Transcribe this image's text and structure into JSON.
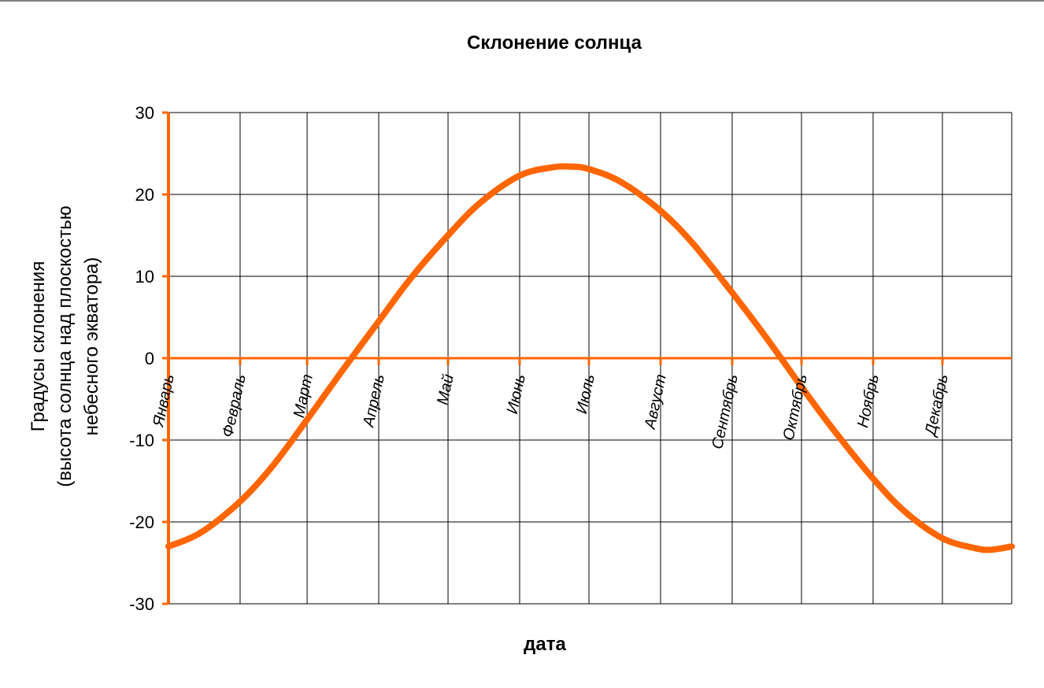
{
  "chart_data": {
    "type": "line",
    "title": "Склонение солнца",
    "xlabel": "дата",
    "ylabel_lines": [
      "Градусы склонения",
      "(высота солнца над плоскостью",
      "небесного экватора)"
    ],
    "x_unit": "day of year",
    "x_range": [
      1,
      366
    ],
    "ylim": [
      -30,
      30
    ],
    "yticks": [
      30,
      20,
      10,
      0,
      -10,
      -20,
      -30
    ],
    "grid": true,
    "legend": "none",
    "months": [
      {
        "label": "Январь",
        "day": 1
      },
      {
        "label": "Февраль",
        "day": 32
      },
      {
        "label": "Март",
        "day": 61
      },
      {
        "label": "Апрель",
        "day": 92
      },
      {
        "label": "Май",
        "day": 122
      },
      {
        "label": "Июнь",
        "day": 153
      },
      {
        "label": "Июль",
        "day": 183
      },
      {
        "label": "Август",
        "day": 214
      },
      {
        "label": "Сентябрь",
        "day": 245
      },
      {
        "label": "Октябрь",
        "day": 275
      },
      {
        "label": "Ноябрь",
        "day": 306
      },
      {
        "label": "Декабрь",
        "day": 336
      }
    ],
    "series": [
      {
        "x": [
          1,
          15,
          32,
          46,
          61,
          75,
          92,
          106,
          122,
          136,
          153,
          167,
          175,
          183,
          197,
          214,
          228,
          245,
          259,
          275,
          289,
          306,
          320,
          336,
          350,
          357,
          366
        ],
        "values": [
          -23.0,
          -21.3,
          -17.5,
          -13.2,
          -7.5,
          -2.0,
          4.5,
          9.8,
          15.0,
          19.0,
          22.3,
          23.3,
          23.4,
          23.1,
          21.5,
          18.0,
          14.0,
          8.0,
          2.8,
          -3.5,
          -8.8,
          -14.7,
          -18.8,
          -22.0,
          -23.2,
          -23.4,
          -23.0
        ]
      }
    ],
    "colors": {
      "series": "#FF6600",
      "axes": "#FF6600",
      "grid": "#000000"
    }
  }
}
